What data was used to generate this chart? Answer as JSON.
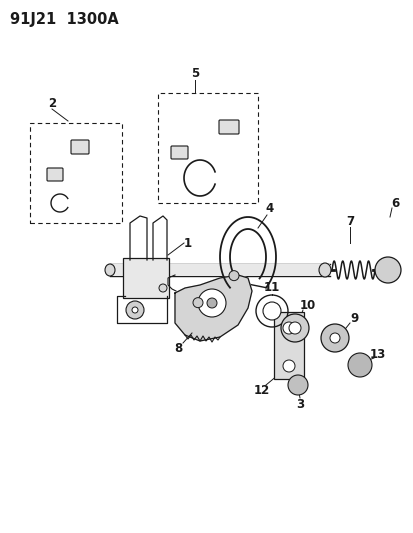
{
  "title": "91J21  1300A",
  "bg_color": "#ffffff",
  "line_color": "#1a1a1a",
  "title_fontsize": 10.5,
  "label_fontsize": 8.5,
  "fig_w": 4.14,
  "fig_h": 5.33,
  "dpi": 100
}
